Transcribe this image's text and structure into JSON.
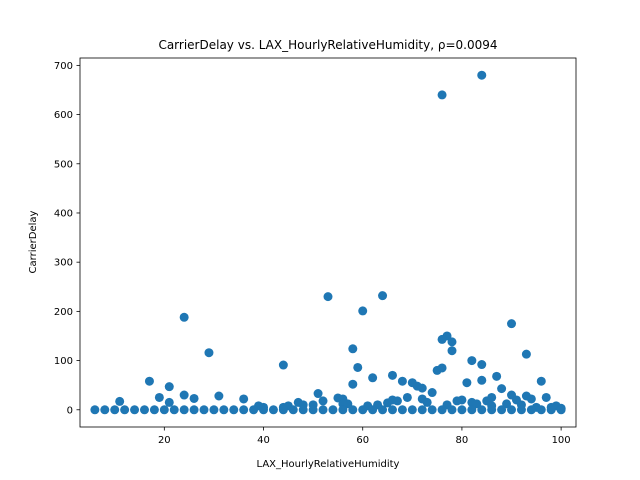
{
  "chart_data": {
    "type": "scatter",
    "title": "CarrierDelay vs. LAX_HourlyRelativeHumidity, ρ=0.0094",
    "xlabel": "LAX_HourlyRelativeHumidity",
    "ylabel": "CarrierDelay",
    "xlim": [
      3,
      103
    ],
    "ylim": [
      -35,
      715
    ],
    "xticks": [
      20,
      40,
      60,
      80,
      100
    ],
    "yticks": [
      0,
      100,
      200,
      300,
      400,
      500,
      600,
      700
    ],
    "grid": false,
    "marker_color": "#1f77b4",
    "series": [
      {
        "x": [
          76,
          84,
          53,
          64,
          24,
          60,
          29,
          44,
          58,
          17,
          21,
          26,
          90,
          93,
          96,
          77,
          78,
          82,
          76,
          75,
          59,
          62,
          58,
          66,
          68,
          70,
          71,
          72,
          74,
          76,
          78,
          80,
          81,
          84,
          84,
          87,
          88,
          90,
          91,
          93,
          94,
          97,
          98,
          99,
          100,
          51,
          55,
          56,
          52,
          47,
          50,
          57,
          31,
          36,
          19,
          24,
          21,
          39,
          44,
          11,
          40,
          45,
          48,
          56,
          61,
          63,
          65,
          66,
          67,
          69,
          72,
          73,
          77,
          79,
          82,
          83,
          85,
          86,
          86,
          89,
          92,
          95,
          100,
          6,
          8,
          10,
          12,
          14,
          16,
          18,
          20,
          22,
          24,
          26,
          28,
          30,
          32,
          34,
          36,
          38,
          40,
          42,
          44,
          46,
          48,
          50,
          52,
          54,
          56,
          58,
          60,
          62,
          64,
          66,
          68,
          70,
          72,
          74,
          76,
          78,
          80,
          82,
          84,
          86,
          88,
          90,
          92,
          94,
          96,
          98,
          100
        ],
        "y": [
          640,
          680,
          230,
          232,
          188,
          201,
          116,
          91,
          124,
          58,
          47,
          23,
          175,
          113,
          58,
          150,
          138,
          100,
          143,
          80,
          86,
          65,
          52,
          70,
          58,
          55,
          48,
          44,
          35,
          85,
          120,
          20,
          55,
          92,
          60,
          68,
          43,
          30,
          20,
          28,
          22,
          25,
          5,
          8,
          3,
          33,
          24,
          22,
          18,
          15,
          10,
          12,
          28,
          22,
          25,
          30,
          15,
          8,
          5,
          17,
          5,
          8,
          10,
          12,
          8,
          10,
          14,
          20,
          18,
          25,
          22,
          15,
          10,
          18,
          15,
          12,
          18,
          8,
          25,
          12,
          10,
          5,
          2,
          0,
          0,
          0,
          0,
          0,
          0,
          0,
          0,
          0,
          0,
          0,
          0,
          0,
          0,
          0,
          0,
          0,
          0,
          0,
          0,
          0,
          0,
          0,
          0,
          0,
          0,
          0,
          0,
          0,
          0,
          0,
          0,
          0,
          0,
          0,
          0,
          0,
          0,
          0,
          0,
          0,
          0,
          0,
          0,
          0,
          0,
          0,
          0
        ]
      }
    ]
  }
}
